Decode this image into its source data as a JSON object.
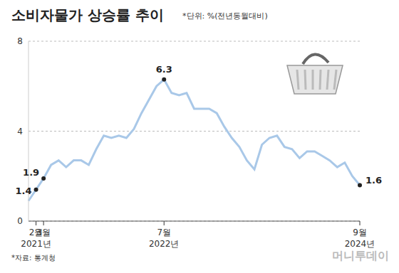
{
  "chart_data": {
    "type": "line",
    "title": "소비자물가 상승률 추이",
    "subtitle": "*단위: %(전년동월대비)",
    "source": "*자료: 통계청",
    "credit": "머니투데이",
    "categories": [
      null,
      "2월\n2021년",
      "3월",
      null,
      null,
      null,
      null,
      null,
      null,
      null,
      null,
      null,
      null,
      null,
      null,
      null,
      null,
      null,
      "7월\n2022년",
      null,
      null,
      null,
      null,
      null,
      null,
      null,
      null,
      null,
      null,
      null,
      null,
      null,
      null,
      null,
      null,
      null,
      null,
      null,
      null,
      null,
      null,
      null,
      null,
      null,
      "9월\n2024년"
    ],
    "values": [
      0.9,
      1.4,
      1.9,
      2.5,
      2.7,
      2.4,
      2.7,
      2.7,
      2.5,
      3.2,
      3.8,
      3.7,
      3.8,
      3.7,
      4.1,
      4.8,
      5.4,
      6.0,
      6.3,
      5.7,
      5.6,
      5.7,
      5.0,
      5.0,
      5.0,
      4.8,
      4.2,
      3.7,
      3.3,
      2.7,
      2.3,
      3.4,
      3.7,
      3.8,
      3.3,
      3.2,
      2.8,
      3.1,
      3.1,
      2.9,
      2.7,
      2.4,
      2.6,
      2.0,
      1.6
    ],
    "color": "#a9c8e8",
    "ylim": [
      0,
      8
    ],
    "yticks": [
      0,
      4,
      8
    ],
    "grid": true,
    "annotations": [
      {
        "point": 1,
        "label": "1.4"
      },
      {
        "point": 2,
        "label": "1.9"
      },
      {
        "point": 18,
        "label": "6.3"
      },
      {
        "point": 44,
        "label": "1.6"
      }
    ]
  }
}
